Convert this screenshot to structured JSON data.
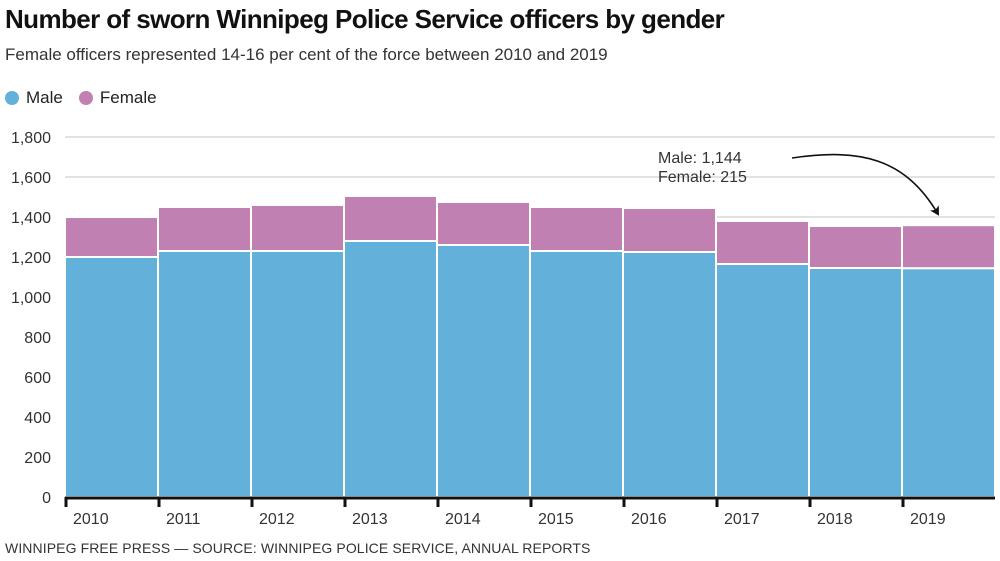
{
  "chart_data": {
    "type": "bar",
    "stacked": true,
    "title": "Number of sworn Winnipeg Police Service officers by gender",
    "subtitle": "Female officers represented 14-16 per cent of the force between 2010 and 2019",
    "xlabel": "",
    "ylabel": "",
    "ylim": [
      0,
      1800
    ],
    "yticks": [
      0,
      200,
      400,
      600,
      800,
      1000,
      1200,
      1400,
      1600,
      1800
    ],
    "ytick_labels": [
      "0",
      "200",
      "400",
      "600",
      "800",
      "1,000",
      "1,200",
      "1,400",
      "1,600",
      "1,800"
    ],
    "grid": true,
    "legend_position": "top-left",
    "categories": [
      "2010",
      "2011",
      "2012",
      "2013",
      "2014",
      "2015",
      "2016",
      "2017",
      "2018",
      "2019"
    ],
    "series": [
      {
        "name": "Male",
        "color": "#63b0da",
        "values": [
          1200,
          1230,
          1230,
          1280,
          1260,
          1230,
          1225,
          1165,
          1145,
          1144
        ]
      },
      {
        "name": "Female",
        "color": "#c080b2",
        "values": [
          200,
          220,
          230,
          225,
          215,
          220,
          220,
          215,
          210,
          215
        ]
      }
    ],
    "annotation": {
      "target_category": "2019",
      "lines": [
        "Male: 1,144",
        "Female: 215"
      ]
    },
    "source": "WINNIPEG FREE PRESS — SOURCE: WINNIPEG POLICE SERVICE, ANNUAL REPORTS"
  }
}
